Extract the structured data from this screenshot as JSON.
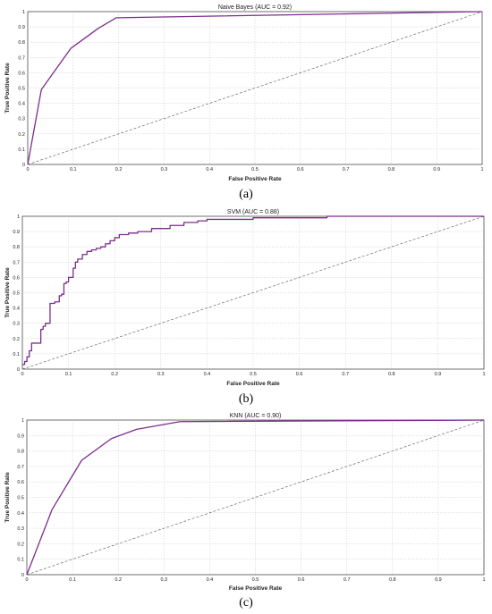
{
  "chart_data": [
    {
      "type": "line",
      "panel_caption": "(a)",
      "title": "Naive Bayes (AUC = 0.92)",
      "xlabel": "False Positive Rate",
      "ylabel": "True Positive Rate",
      "xlim": [
        0,
        1
      ],
      "ylim": [
        0,
        1
      ],
      "xticks": [
        "0",
        "0.1",
        "0.2",
        "0.3",
        "0.4",
        "0.5",
        "0.6",
        "0.7",
        "0.8",
        "0.9",
        "1"
      ],
      "yticks": [
        "0",
        "0.1",
        "0.2",
        "0.3",
        "0.4",
        "0.5",
        "0.6",
        "0.7",
        "0.8",
        "0.9",
        "1"
      ],
      "grid": true,
      "series": [
        {
          "color": "#7b2d8e",
          "step": false,
          "x": [
            0,
            0.03,
            0.095,
            0.155,
            0.195,
            1.0
          ],
          "y": [
            0,
            0.49,
            0.76,
            0.89,
            0.96,
            1.0
          ]
        }
      ],
      "reference": {
        "color": "#555555",
        "x": [
          0,
          1
        ],
        "y": [
          0,
          1
        ]
      }
    },
    {
      "type": "line",
      "panel_caption": "(b)",
      "title": "SVM (AUC = 0.88)",
      "xlabel": "False Positive Rate",
      "ylabel": "True Positive Rate",
      "xlim": [
        0,
        1
      ],
      "ylim": [
        0,
        1
      ],
      "xticks": [
        "0",
        "0.1",
        "0.2",
        "0.3",
        "0.4",
        "0.5",
        "0.6",
        "0.7",
        "0.8",
        "0.9",
        "1"
      ],
      "yticks": [
        "0",
        "0.1",
        "0.2",
        "0.3",
        "0.4",
        "0.5",
        "0.6",
        "0.7",
        "0.8",
        "0.9",
        "1"
      ],
      "grid": true,
      "series": [
        {
          "color": "#7b2d8e",
          "step": true,
          "x": [
            0,
            0.005,
            0.01,
            0.015,
            0.02,
            0.04,
            0.045,
            0.05,
            0.06,
            0.07,
            0.08,
            0.085,
            0.09,
            0.095,
            0.1,
            0.11,
            0.115,
            0.12,
            0.13,
            0.14,
            0.15,
            0.16,
            0.17,
            0.18,
            0.19,
            0.2,
            0.21,
            0.23,
            0.25,
            0.28,
            0.32,
            0.35,
            0.38,
            0.4,
            0.45,
            0.5,
            0.6,
            0.66,
            0.8,
            1.0
          ],
          "y": [
            0.03,
            0.05,
            0.08,
            0.12,
            0.17,
            0.26,
            0.28,
            0.3,
            0.43,
            0.44,
            0.48,
            0.49,
            0.56,
            0.57,
            0.6,
            0.66,
            0.7,
            0.72,
            0.75,
            0.77,
            0.78,
            0.79,
            0.8,
            0.82,
            0.84,
            0.86,
            0.88,
            0.89,
            0.9,
            0.92,
            0.94,
            0.96,
            0.97,
            0.98,
            0.98,
            0.99,
            0.99,
            1.0,
            1.0,
            1.0
          ]
        }
      ],
      "reference": {
        "color": "#555555",
        "x": [
          0,
          1
        ],
        "y": [
          0,
          1
        ]
      }
    },
    {
      "type": "line",
      "panel_caption": "(c)",
      "title": "KNN (AUC = 0.90)",
      "xlabel": "False Positive Rate",
      "ylabel": "True Positive Rate",
      "xlim": [
        0,
        1
      ],
      "ylim": [
        0,
        1
      ],
      "xticks": [
        "0",
        "0.1",
        "0.2",
        "0.3",
        "0.4",
        "0.5",
        "0.6",
        "0.7",
        "0.8",
        "0.9",
        "1"
      ],
      "yticks": [
        "0",
        "0.1",
        "0.2",
        "0.3",
        "0.4",
        "0.5",
        "0.6",
        "0.7",
        "0.8",
        "0.9",
        "1"
      ],
      "grid": true,
      "series": [
        {
          "color": "#7b2d8e",
          "step": false,
          "x": [
            0,
            0.055,
            0.12,
            0.185,
            0.24,
            0.335,
            1.0
          ],
          "y": [
            0,
            0.42,
            0.74,
            0.88,
            0.94,
            0.99,
            1.0
          ]
        }
      ],
      "reference": {
        "color": "#555555",
        "x": [
          0,
          1
        ],
        "y": [
          0,
          1
        ]
      }
    }
  ]
}
